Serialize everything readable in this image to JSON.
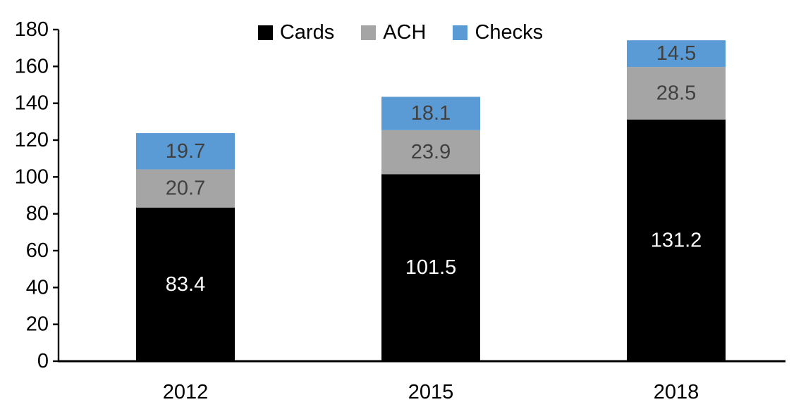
{
  "chart_data": {
    "type": "bar",
    "stacked": true,
    "title": "",
    "xlabel": "",
    "ylabel": "",
    "categories": [
      "2012",
      "2015",
      "2018"
    ],
    "series": [
      {
        "name": "Cards",
        "color": "#000000",
        "label_color": "#ffffff",
        "values": [
          83.4,
          101.5,
          131.2
        ]
      },
      {
        "name": "ACH",
        "color": "#a5a5a5",
        "label_color": "#404040",
        "values": [
          20.7,
          23.9,
          28.5
        ]
      },
      {
        "name": "Checks",
        "color": "#5b9bd5",
        "label_color": "#404040",
        "values": [
          19.7,
          18.1,
          14.5
        ]
      }
    ],
    "totals": [
      123.8,
      143.5,
      174.2
    ],
    "ylim": [
      0,
      180
    ],
    "yticks": [
      0,
      20,
      40,
      60,
      80,
      100,
      120,
      140,
      160,
      180
    ],
    "grid": false,
    "legend_position": "top",
    "axis_color": "#000000",
    "tick_label_color": "#000000",
    "category_label_color": "#000000"
  }
}
